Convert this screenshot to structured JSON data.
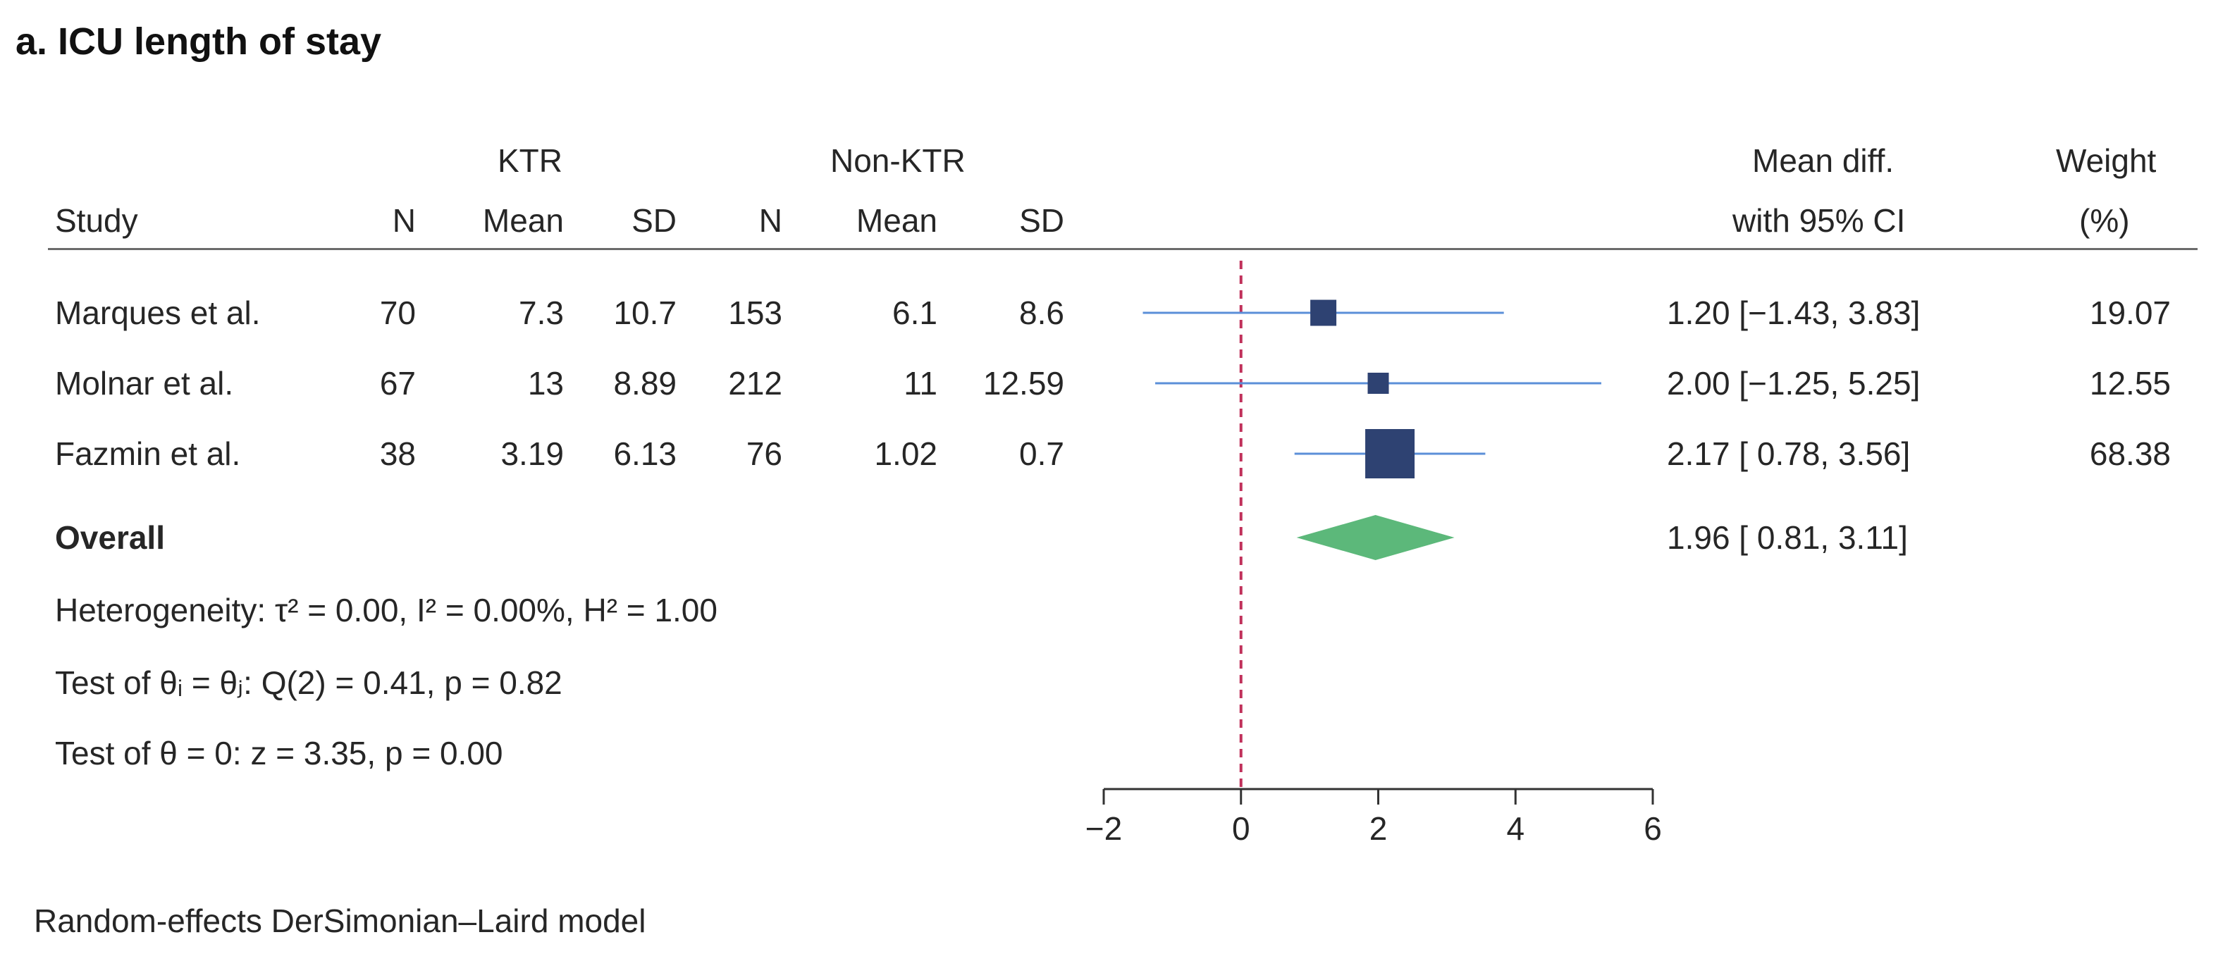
{
  "title": "a. ICU length of stay",
  "header": {
    "group1": "KTR",
    "group2": "Non-KTR",
    "study": "Study",
    "n1": "N",
    "mean1": "Mean",
    "sd1": "SD",
    "n2": "N",
    "mean2": "Mean",
    "sd2": "SD",
    "md_line1": "Mean diff.",
    "md_line2": "with 95% CI",
    "w_line1": "Weight",
    "w_line2": "(%)"
  },
  "studies": [
    {
      "name": "Marques et al.",
      "n1": "70",
      "mean1": "7.3",
      "sd1": "10.7",
      "n2": "153",
      "mean2": "6.1",
      "sd2": "8.6",
      "ci_text": "1.20 [−1.43,  3.83]",
      "weight_text": "19.07"
    },
    {
      "name": "Molnar et al.",
      "n1": "67",
      "mean1": "13",
      "sd1": "8.89",
      "n2": "212",
      "mean2": "11",
      "sd2": "12.59",
      "ci_text": "2.00 [−1.25,  5.25]",
      "weight_text": "12.55"
    },
    {
      "name": "Fazmin et al.",
      "n1": "38",
      "mean1": "3.19",
      "sd1": "6.13",
      "n2": "76",
      "mean2": "1.02",
      "sd2": "0.7",
      "ci_text": "2.17 [  0.78,  3.56]",
      "weight_text": "68.38"
    }
  ],
  "overall": {
    "label": "Overall",
    "ci_text": "1.96 [  0.81,  3.11]"
  },
  "stats": {
    "heterogeneity": "Heterogeneity: τ² = 0.00, I² = 0.00%, H² = 1.00",
    "test_q": "Test of θᵢ = θⱼ: Q(2) = 0.41, p = 0.82",
    "test_z": "Test of θ = 0: z = 3.35, p = 0.00"
  },
  "footnote": "Random-effects DerSimonian–Laird model",
  "colors": {
    "box": "#2e4272",
    "ci_line": "#5b8fd8",
    "diamond": "#5cb87a",
    "ref_line": "#c0305a",
    "axis": "#333333"
  },
  "chart_data": {
    "type": "forest",
    "title": "a. ICU length of stay",
    "xlabel": "",
    "xlim": [
      -2,
      6
    ],
    "ticks": [
      -2,
      0,
      2,
      4,
      6
    ],
    "tick_labels": [
      "−2",
      "0",
      "2",
      "4",
      "6"
    ],
    "reference_line": 0,
    "series": [
      {
        "name": "Marques et al.",
        "estimate": 1.2,
        "lower": -1.43,
        "upper": 3.83,
        "weight": 19.07
      },
      {
        "name": "Molnar et al.",
        "estimate": 2.0,
        "lower": -1.25,
        "upper": 5.25,
        "weight": 12.55
      },
      {
        "name": "Fazmin et al.",
        "estimate": 2.17,
        "lower": 0.78,
        "upper": 3.56,
        "weight": 68.38
      }
    ],
    "overall": {
      "name": "Overall",
      "estimate": 1.96,
      "lower": 0.81,
      "upper": 3.11
    }
  }
}
